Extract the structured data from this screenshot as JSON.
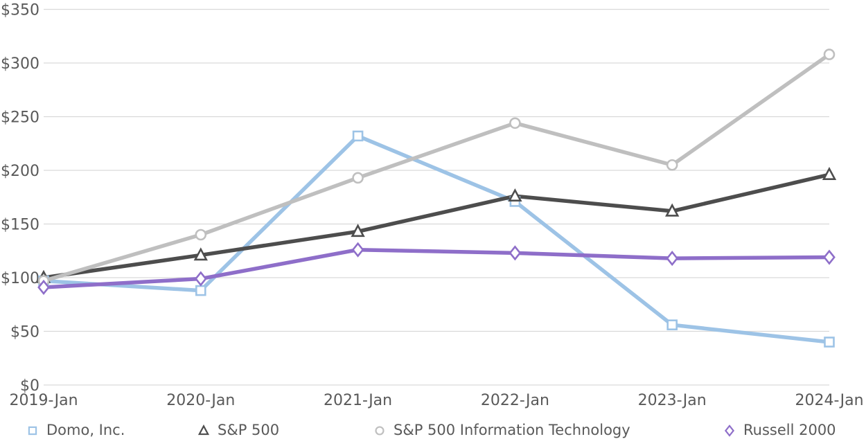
{
  "chart_data": {
    "type": "line",
    "title": "",
    "xlabel": "",
    "ylabel": "",
    "categories": [
      "2019-Jan",
      "2020-Jan",
      "2021-Jan",
      "2022-Jan",
      "2023-Jan",
      "2024-Jan"
    ],
    "series": [
      {
        "name": "Domo, Inc.",
        "marker": "square",
        "color": "#9DC3E6",
        "values": [
          97,
          88,
          232,
          171,
          56,
          40
        ]
      },
      {
        "name": "S&P 500",
        "marker": "triangle",
        "color": "#4D4D4D",
        "values": [
          100,
          121,
          143,
          176,
          162,
          196
        ]
      },
      {
        "name": "S&P 500 Information Technology",
        "marker": "circle",
        "color": "#BFBFBF",
        "values": [
          97,
          140,
          193,
          244,
          205,
          308
        ]
      },
      {
        "name": "Russell 2000",
        "marker": "diamond",
        "color": "#8E6EC9",
        "values": [
          91,
          99,
          126,
          123,
          118,
          119
        ]
      }
    ],
    "y_axis": {
      "min": 0,
      "max": 350,
      "step": 50,
      "prefix": "$",
      "tick_labels": [
        "$0",
        "$50",
        "$100",
        "$150",
        "$200",
        "$250",
        "$300",
        "$350"
      ]
    },
    "grid": true,
    "legend_position": "bottom",
    "colors": {
      "text": "#595959",
      "gridline": "#D9D9D9",
      "marker_fill": "#FFFFFF",
      "background": "#FFFFFF"
    }
  }
}
